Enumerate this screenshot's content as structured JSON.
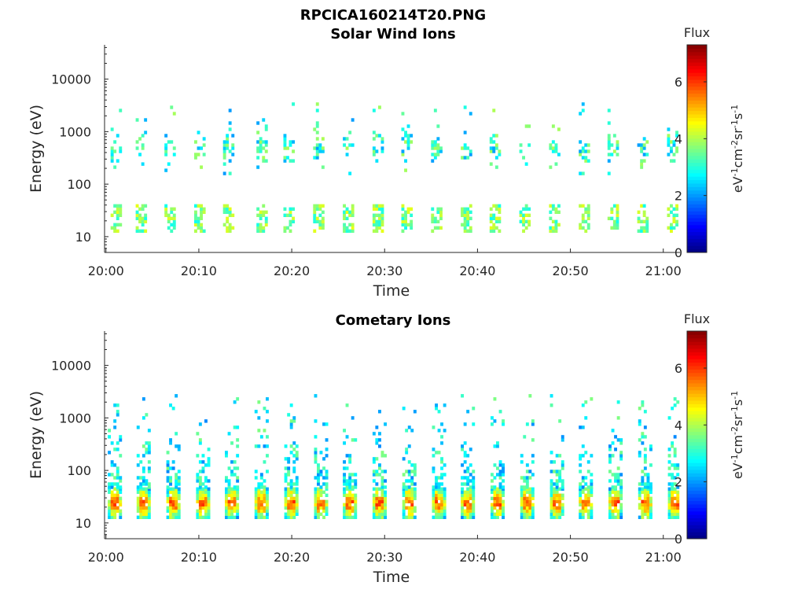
{
  "figure_title": "RPCICA160214T20.PNG",
  "chart_data": [
    {
      "type": "heatmap",
      "title": "Solar Wind Ions",
      "xlabel": "Time",
      "ylabel": "Energy (eV)",
      "y_scale": "log",
      "ylim": [
        5,
        45000
      ],
      "x_ticks": [
        "20:00",
        "20:10",
        "20:20",
        "20:30",
        "20:40",
        "20:50",
        "21:00"
      ],
      "y_ticks": [
        "10",
        "100",
        "1000",
        "10000"
      ],
      "colorbar": {
        "title": "Flux",
        "label": "eV-1cm-2sr-1s-1",
        "ticks": [
          "0",
          "2",
          "4",
          "6"
        ],
        "range": [
          0,
          7.3
        ],
        "colormap": "jet"
      },
      "packets_start_minutes": [
        0.5,
        3.2,
        6.3,
        9.5,
        12.6,
        16.2,
        19.1,
        22.3,
        25.5,
        28.7,
        31.8,
        35.0,
        38.2,
        41.3,
        44.5,
        47.7,
        50.9,
        54.0,
        57.2,
        60.4
      ],
      "low_band_energy_eV": [
        12,
        38
      ],
      "low_band_flux": 3.3,
      "high_band_energy_eV": [
        150,
        3500
      ],
      "high_band_flux": 2.8
    },
    {
      "type": "heatmap",
      "title": "Cometary Ions",
      "xlabel": "Time",
      "ylabel": "Energy (eV)",
      "y_scale": "log",
      "ylim": [
        5,
        45000
      ],
      "x_ticks": [
        "20:00",
        "20:10",
        "20:20",
        "20:30",
        "20:40",
        "20:50",
        "21:00"
      ],
      "y_ticks": [
        "10",
        "100",
        "1000",
        "10000"
      ],
      "colorbar": {
        "title": "Flux",
        "label": "eV-1cm-2sr-1s-1",
        "ticks": [
          "0",
          "2",
          "4",
          "6"
        ],
        "range": [
          0,
          7.3
        ],
        "colormap": "jet"
      },
      "packets_start_minutes": [
        0.2,
        3.3,
        6.5,
        9.7,
        12.8,
        16.0,
        19.2,
        22.4,
        25.5,
        28.7,
        31.9,
        35.1,
        38.2,
        41.4,
        44.6,
        47.8,
        50.9,
        54.1,
        57.3,
        60.5
      ],
      "core_energy_eV": [
        12,
        42
      ],
      "core_flux": 5.8,
      "tail_energy_eV": [
        45,
        2500
      ],
      "tail_flux": 2.6
    }
  ]
}
